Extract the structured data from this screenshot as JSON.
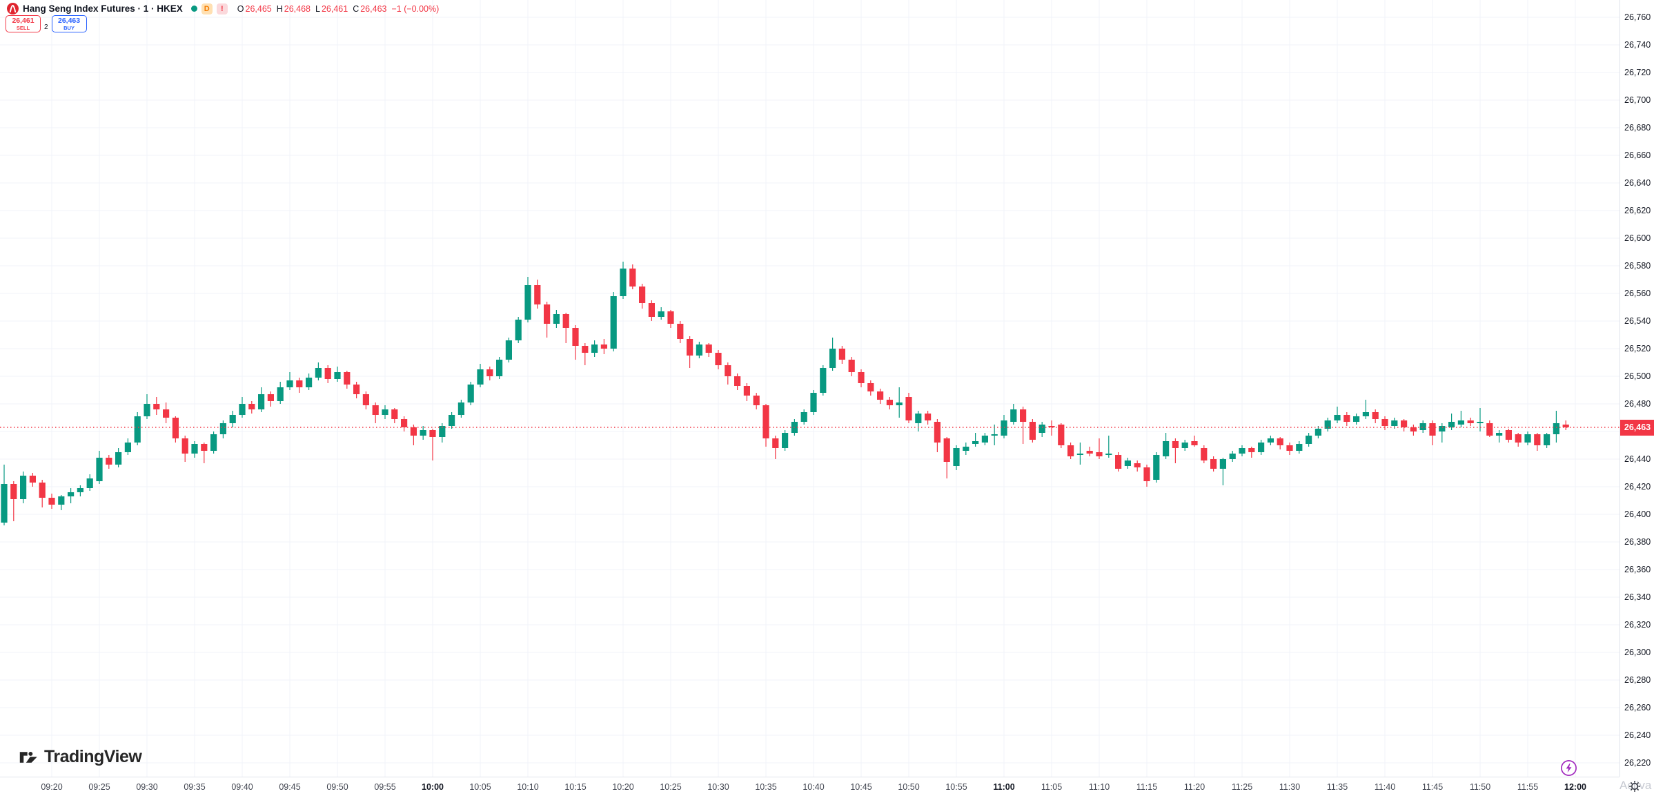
{
  "header": {
    "title": "Hang Seng Index Futures · 1 · HKEX",
    "status_dot_color": "#089981",
    "resolution_badge": "D",
    "alert_badge": "!",
    "ohlc": {
      "o_label": "O",
      "o": "26,465",
      "h_label": "H",
      "h": "26,468",
      "l_label": "L",
      "l": "26,461",
      "c_label": "C",
      "c": "26,463",
      "change": "−1 (−0.00%)"
    },
    "sell_button": {
      "price": "26,461",
      "label": "SELL"
    },
    "spread": "2",
    "buy_button": {
      "price": "26,463",
      "label": "BUY"
    }
  },
  "watermark": {
    "text": "TradingView"
  },
  "corner": {
    "activate_text": "Activa"
  },
  "price_axis": {
    "badge": "26,463",
    "ticks": [
      "26,760",
      "26,740",
      "26,720",
      "26,700",
      "26,680",
      "26,660",
      "26,640",
      "26,620",
      "26,600",
      "26,580",
      "26,560",
      "26,540",
      "26,520",
      "26,500",
      "26,480",
      "26,440",
      "26,420",
      "26,400",
      "26,380",
      "26,360",
      "26,340",
      "26,320",
      "26,300",
      "26,280",
      "26,260",
      "26,240",
      "26,220"
    ]
  },
  "time_axis": {
    "ticks": [
      {
        "label": "09:20",
        "bold": false
      },
      {
        "label": "09:25",
        "bold": false
      },
      {
        "label": "09:30",
        "bold": false
      },
      {
        "label": "09:35",
        "bold": false
      },
      {
        "label": "09:40",
        "bold": false
      },
      {
        "label": "09:45",
        "bold": false
      },
      {
        "label": "09:50",
        "bold": false
      },
      {
        "label": "09:55",
        "bold": false
      },
      {
        "label": "10:00",
        "bold": true
      },
      {
        "label": "10:05",
        "bold": false
      },
      {
        "label": "10:10",
        "bold": false
      },
      {
        "label": "10:15",
        "bold": false
      },
      {
        "label": "10:20",
        "bold": false
      },
      {
        "label": "10:25",
        "bold": false
      },
      {
        "label": "10:30",
        "bold": false
      },
      {
        "label": "10:35",
        "bold": false
      },
      {
        "label": "10:40",
        "bold": false
      },
      {
        "label": "10:45",
        "bold": false
      },
      {
        "label": "10:50",
        "bold": false
      },
      {
        "label": "10:55",
        "bold": false
      },
      {
        "label": "11:00",
        "bold": true
      },
      {
        "label": "11:05",
        "bold": false
      },
      {
        "label": "11:10",
        "bold": false
      },
      {
        "label": "11:15",
        "bold": false
      },
      {
        "label": "11:20",
        "bold": false
      },
      {
        "label": "11:25",
        "bold": false
      },
      {
        "label": "11:30",
        "bold": false
      },
      {
        "label": "11:35",
        "bold": false
      },
      {
        "label": "11:40",
        "bold": false
      },
      {
        "label": "11:45",
        "bold": false
      },
      {
        "label": "11:50",
        "bold": false
      },
      {
        "label": "11:55",
        "bold": false
      },
      {
        "label": "12:00",
        "bold": true
      }
    ]
  },
  "chart_data": {
    "type": "candlestick",
    "title": "Hang Seng Index Futures",
    "interval": "1",
    "exchange": "HKEX",
    "up_color": "#089981",
    "down_color": "#f23645",
    "grid_color": "#f0f3fa",
    "last_price_line_color": "#f23645",
    "ylim": [
      26212,
      26772
    ],
    "price_tick_step": 20,
    "time_range": [
      "09:15",
      "12:00"
    ],
    "last_price": 26463,
    "session_high": 26583,
    "session_low": 26392,
    "legend_position": "top-left",
    "grid": true,
    "candles": [
      [
        "09:15",
        26394,
        26436,
        26392,
        26422
      ],
      [
        "09:16",
        26422,
        26424,
        26395,
        26411
      ],
      [
        "09:17",
        26411,
        26431,
        26408,
        26428
      ],
      [
        "09:18",
        26428,
        26430,
        26420,
        26423
      ],
      [
        "09:19",
        26423,
        26425,
        26405,
        26412
      ],
      [
        "09:20",
        26412,
        26415,
        26404,
        26407
      ],
      [
        "09:21",
        26407,
        26414,
        26403,
        26413
      ],
      [
        "09:22",
        26413,
        26419,
        26408,
        26416
      ],
      [
        "09:23",
        26416,
        26421,
        26413,
        26419
      ],
      [
        "09:24",
        26419,
        26429,
        26417,
        26426
      ],
      [
        "09:25",
        26424,
        26446,
        26422,
        26441
      ],
      [
        "09:26",
        26441,
        26443,
        26433,
        26436
      ],
      [
        "09:27",
        26436,
        26448,
        26434,
        26445
      ],
      [
        "09:28",
        26445,
        26455,
        26443,
        26452
      ],
      [
        "09:29",
        26452,
        26474,
        26450,
        26471
      ],
      [
        "09:30",
        26471,
        26487,
        26469,
        26480
      ],
      [
        "09:31",
        26480,
        26485,
        26472,
        26476
      ],
      [
        "09:32",
        26476,
        26481,
        26466,
        26470
      ],
      [
        "09:33",
        26470,
        26471,
        26452,
        26455
      ],
      [
        "09:34",
        26455,
        26457,
        26438,
        26444
      ],
      [
        "09:35",
        26444,
        26453,
        26441,
        26451
      ],
      [
        "09:36",
        26451,
        26452,
        26437,
        26446
      ],
      [
        "09:37",
        26446,
        26460,
        26444,
        26458
      ],
      [
        "09:38",
        26458,
        26468,
        26455,
        26466
      ],
      [
        "09:39",
        26466,
        26475,
        26463,
        26472
      ],
      [
        "09:40",
        26472,
        26485,
        26470,
        26480
      ],
      [
        "09:41",
        26480,
        26482,
        26473,
        26476
      ],
      [
        "09:42",
        26476,
        26492,
        26474,
        26487
      ],
      [
        "09:43",
        26487,
        26489,
        26478,
        26482
      ],
      [
        "09:44",
        26482,
        26496,
        26480,
        26492
      ],
      [
        "09:45",
        26492,
        26503,
        26490,
        26497
      ],
      [
        "09:46",
        26497,
        26499,
        26488,
        26492
      ],
      [
        "09:47",
        26492,
        26502,
        26490,
        26499
      ],
      [
        "09:48",
        26499,
        26510,
        26497,
        26506
      ],
      [
        "09:49",
        26506,
        26508,
        26495,
        26498
      ],
      [
        "09:50",
        26498,
        26507,
        26496,
        26503
      ],
      [
        "09:51",
        26503,
        26504,
        26491,
        26494
      ],
      [
        "09:52",
        26494,
        26496,
        26484,
        26487
      ],
      [
        "09:53",
        26487,
        26489,
        26476,
        26479
      ],
      [
        "09:54",
        26479,
        26481,
        26466,
        26472
      ],
      [
        "09:55",
        26472,
        26479,
        26469,
        26476
      ],
      [
        "09:56",
        26476,
        26477,
        26466,
        26469
      ],
      [
        "09:57",
        26469,
        26471,
        26460,
        26463
      ],
      [
        "09:58",
        26463,
        26465,
        26450,
        26457
      ],
      [
        "09:59",
        26457,
        26464,
        26454,
        26461
      ],
      [
        "10:00",
        26461,
        26462,
        26439,
        26456
      ],
      [
        "10:01",
        26456,
        26466,
        26452,
        26464
      ],
      [
        "10:02",
        26464,
        26474,
        26462,
        26472
      ],
      [
        "10:03",
        26472,
        26483,
        26470,
        26481
      ],
      [
        "10:04",
        26481,
        26496,
        26479,
        26494
      ],
      [
        "10:05",
        26494,
        26509,
        26492,
        26505
      ],
      [
        "10:06",
        26505,
        26507,
        26497,
        26500
      ],
      [
        "10:07",
        26500,
        26514,
        26498,
        26512
      ],
      [
        "10:08",
        26512,
        26528,
        26510,
        26526
      ],
      [
        "10:09",
        26526,
        26543,
        26524,
        26541
      ],
      [
        "10:10",
        26541,
        26572,
        26539,
        26566
      ],
      [
        "10:11",
        26566,
        26570,
        26549,
        26552
      ],
      [
        "10:12",
        26552,
        26554,
        26528,
        26538
      ],
      [
        "10:13",
        26538,
        26548,
        26535,
        26545
      ],
      [
        "10:14",
        26545,
        26546,
        26524,
        26535
      ],
      [
        "10:15",
        26535,
        26537,
        26512,
        26522
      ],
      [
        "10:16",
        26522,
        26524,
        26508,
        26517
      ],
      [
        "10:17",
        26517,
        26526,
        26514,
        26523
      ],
      [
        "10:18",
        26523,
        26527,
        26516,
        26520
      ],
      [
        "10:19",
        26520,
        26561,
        26518,
        26558
      ],
      [
        "10:20",
        26558,
        26583,
        26556,
        26578
      ],
      [
        "10:21",
        26578,
        26581,
        26563,
        26565
      ],
      [
        "10:22",
        26565,
        26567,
        26549,
        26553
      ],
      [
        "10:23",
        26553,
        26555,
        26540,
        26543
      ],
      [
        "10:24",
        26543,
        26550,
        26541,
        26547
      ],
      [
        "10:25",
        26547,
        26548,
        26535,
        26538
      ],
      [
        "10:26",
        26538,
        26540,
        26524,
        26527
      ],
      [
        "10:27",
        26527,
        26529,
        26506,
        26515
      ],
      [
        "10:28",
        26515,
        26525,
        26513,
        26523
      ],
      [
        "10:29",
        26523,
        26524,
        26514,
        26517
      ],
      [
        "10:30",
        26517,
        26519,
        26505,
        26508
      ],
      [
        "10:31",
        26508,
        26510,
        26494,
        26500
      ],
      [
        "10:32",
        26500,
        26502,
        26490,
        26493
      ],
      [
        "10:33",
        26493,
        26495,
        26482,
        26486
      ],
      [
        "10:34",
        26486,
        26488,
        26476,
        26479
      ],
      [
        "10:35",
        26479,
        26480,
        26449,
        26455
      ],
      [
        "10:36",
        26455,
        26457,
        26440,
        26448
      ],
      [
        "10:37",
        26448,
        26461,
        26446,
        26459
      ],
      [
        "10:38",
        26459,
        26469,
        26457,
        26467
      ],
      [
        "10:39",
        26467,
        26476,
        26465,
        26474
      ],
      [
        "10:40",
        26474,
        26490,
        26472,
        26488
      ],
      [
        "10:41",
        26488,
        26508,
        26486,
        26506
      ],
      [
        "10:42",
        26506,
        26528,
        26504,
        26520
      ],
      [
        "10:43",
        26520,
        26522,
        26509,
        26512
      ],
      [
        "10:44",
        26512,
        26514,
        26500,
        26503
      ],
      [
        "10:45",
        26503,
        26505,
        26492,
        26495
      ],
      [
        "10:46",
        26495,
        26497,
        26486,
        26489
      ],
      [
        "10:47",
        26489,
        26491,
        26480,
        26483
      ],
      [
        "10:48",
        26483,
        26485,
        26476,
        26479
      ],
      [
        "10:49",
        26479,
        26492,
        26470,
        26481
      ],
      [
        "10:50",
        26485,
        26488,
        26466,
        26468
      ],
      [
        "10:51",
        26466,
        26475,
        26460,
        26473
      ],
      [
        "10:52",
        26473,
        26475,
        26465,
        26468
      ],
      [
        "10:53",
        26467,
        26469,
        26445,
        26452
      ],
      [
        "10:54",
        26455,
        26456,
        26426,
        26438
      ],
      [
        "10:55",
        26435,
        26450,
        26432,
        26448
      ],
      [
        "10:56",
        26446,
        26452,
        26443,
        26449
      ],
      [
        "10:57",
        26451,
        26459,
        26449,
        26453
      ],
      [
        "10:58",
        26452,
        26459,
        26450,
        26457
      ],
      [
        "10:59",
        26457,
        26465,
        26450,
        26458
      ],
      [
        "11:00",
        26457,
        26472,
        26455,
        26468
      ],
      [
        "11:01",
        26467,
        26480,
        26465,
        26476
      ],
      [
        "11:02",
        26476,
        26478,
        26451,
        26467
      ],
      [
        "11:03",
        26467,
        26469,
        26452,
        26454
      ],
      [
        "11:04",
        26459,
        26467,
        26456,
        26465
      ],
      [
        "11:05",
        26464,
        26468,
        26457,
        26463
      ],
      [
        "11:06",
        26465,
        26466,
        26448,
        26450
      ],
      [
        "11:07",
        26450,
        26452,
        26440,
        26442
      ],
      [
        "11:08",
        26443,
        26452,
        26436,
        26444
      ],
      [
        "11:09",
        26446,
        26449,
        26442,
        26444
      ],
      [
        "11:10",
        26445,
        26455,
        26440,
        26442
      ],
      [
        "11:11",
        26443,
        26457,
        26441,
        26444
      ],
      [
        "11:12",
        26443,
        26445,
        26431,
        26433
      ],
      [
        "11:13",
        26435,
        26441,
        26433,
        26439
      ],
      [
        "11:14",
        26437,
        26439,
        26431,
        26434
      ],
      [
        "11:15",
        26434,
        26436,
        26420,
        26424
      ],
      [
        "11:16",
        26425,
        26445,
        26423,
        26443
      ],
      [
        "11:17",
        26442,
        26459,
        26440,
        26453
      ],
      [
        "11:18",
        26453,
        26455,
        26437,
        26448
      ],
      [
        "11:19",
        26448,
        26454,
        26446,
        26452
      ],
      [
        "11:20",
        26453,
        26457,
        26449,
        26450
      ],
      [
        "11:21",
        26448,
        26450,
        26437,
        26439
      ],
      [
        "11:22",
        26440,
        26442,
        26431,
        26433
      ],
      [
        "11:23",
        26433,
        26441,
        26421,
        26440
      ],
      [
        "11:24",
        26440,
        26446,
        26438,
        26444
      ],
      [
        "11:25",
        26444,
        26450,
        26442,
        26448
      ],
      [
        "11:26",
        26448,
        26449,
        26441,
        26445
      ],
      [
        "11:27",
        26445,
        26454,
        26443,
        26452
      ],
      [
        "11:28",
        26452,
        26457,
        26450,
        26455
      ],
      [
        "11:29",
        26455,
        26456,
        26447,
        26450
      ],
      [
        "11:30",
        26450,
        26452,
        26443,
        26446
      ],
      [
        "11:31",
        26446,
        26453,
        26444,
        26451
      ],
      [
        "11:32",
        26451,
        26459,
        26449,
        26457
      ],
      [
        "11:33",
        26457,
        26464,
        26455,
        26462
      ],
      [
        "11:34",
        26462,
        26470,
        26460,
        26468
      ],
      [
        "11:35",
        26468,
        26478,
        26466,
        26472
      ],
      [
        "11:36",
        26472,
        26474,
        26464,
        26467
      ],
      [
        "11:37",
        26467,
        26473,
        26465,
        26471
      ],
      [
        "11:38",
        26471,
        26483,
        26469,
        26474
      ],
      [
        "11:39",
        26474,
        26476,
        26466,
        26469
      ],
      [
        "11:40",
        26469,
        26471,
        26461,
        26464
      ],
      [
        "11:41",
        26464,
        26470,
        26462,
        26468
      ],
      [
        "11:42",
        26468,
        26469,
        26460,
        26463
      ],
      [
        "11:43",
        26463,
        26465,
        26457,
        26460
      ],
      [
        "11:44",
        26461,
        26468,
        26459,
        26466
      ],
      [
        "11:45",
        26466,
        26468,
        26450,
        26457
      ],
      [
        "11:46",
        26460,
        26466,
        26452,
        26464
      ],
      [
        "11:47",
        26463,
        26473,
        26461,
        26467
      ],
      [
        "11:48",
        26465,
        26475,
        26463,
        26468
      ],
      [
        "11:49",
        26468,
        26470,
        26464,
        26466
      ],
      [
        "11:50",
        26466,
        26477,
        26460,
        26467
      ],
      [
        "11:51",
        26466,
        26468,
        26456,
        26457
      ],
      [
        "11:52",
        26457,
        26461,
        26452,
        26459
      ],
      [
        "11:53",
        26461,
        26462,
        26452,
        26454
      ],
      [
        "11:54",
        26458,
        26459,
        26449,
        26452
      ],
      [
        "11:55",
        26452,
        26460,
        26450,
        26458
      ],
      [
        "11:56",
        26458,
        26459,
        26446,
        26450
      ],
      [
        "11:57",
        26450,
        26459,
        26448,
        26458
      ],
      [
        "11:58",
        26458,
        26475,
        26452,
        26466
      ],
      [
        "11:59",
        26465,
        26468,
        26461,
        26463
      ]
    ]
  }
}
